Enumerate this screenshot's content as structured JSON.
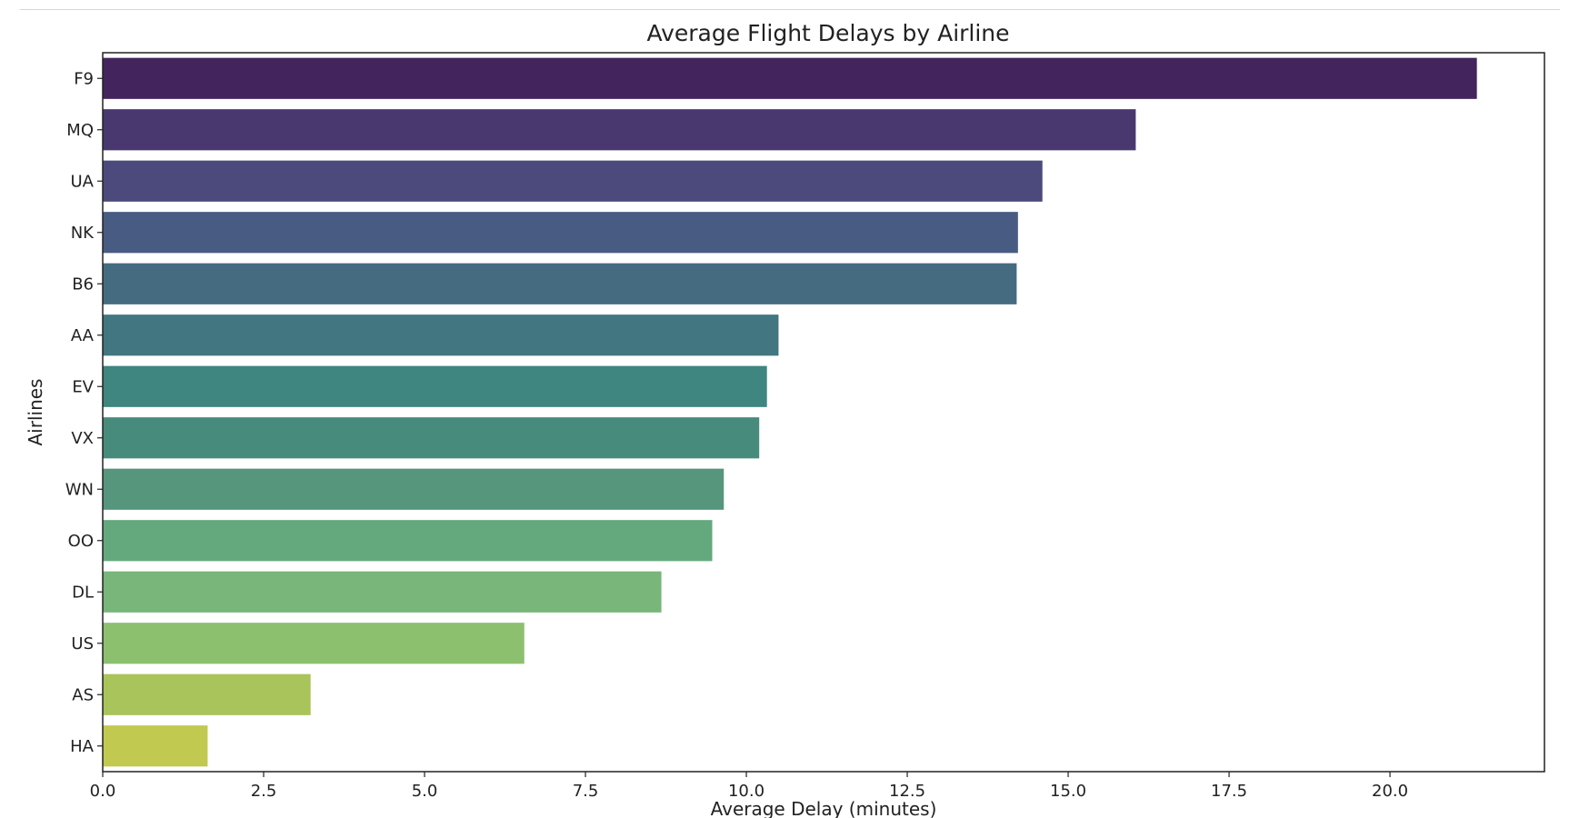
{
  "chart_data": {
    "type": "bar",
    "orientation": "horizontal",
    "title": "Average Flight Delays by Airline",
    "xlabel": "Average Delay (minutes)",
    "ylabel": "Airlines",
    "xlim": [
      0,
      22.4
    ],
    "x_ticks": [
      "0.0",
      "2.5",
      "5.0",
      "7.5",
      "10.0",
      "12.5",
      "15.0",
      "17.5",
      "20.0"
    ],
    "x_tick_values": [
      0,
      2.5,
      5,
      7.5,
      10,
      12.5,
      15,
      17.5,
      20
    ],
    "grid": false,
    "categories": [
      "F9",
      "MQ",
      "UA",
      "NK",
      "B6",
      "AA",
      "EV",
      "VX",
      "WN",
      "OO",
      "DL",
      "US",
      "AS",
      "HA"
    ],
    "values": [
      21.35,
      16.05,
      14.6,
      14.22,
      14.2,
      10.5,
      10.32,
      10.2,
      9.65,
      9.47,
      8.68,
      6.55,
      3.23,
      1.63
    ],
    "colors": [
      "#43245c",
      "#49386f",
      "#4c4a7c",
      "#485b83",
      "#456b80",
      "#427680",
      "#3f8580",
      "#478b7c",
      "#55967c",
      "#64a97e",
      "#78b67a",
      "#8cc06e",
      "#a9c45a",
      "#c1c951"
    ]
  }
}
